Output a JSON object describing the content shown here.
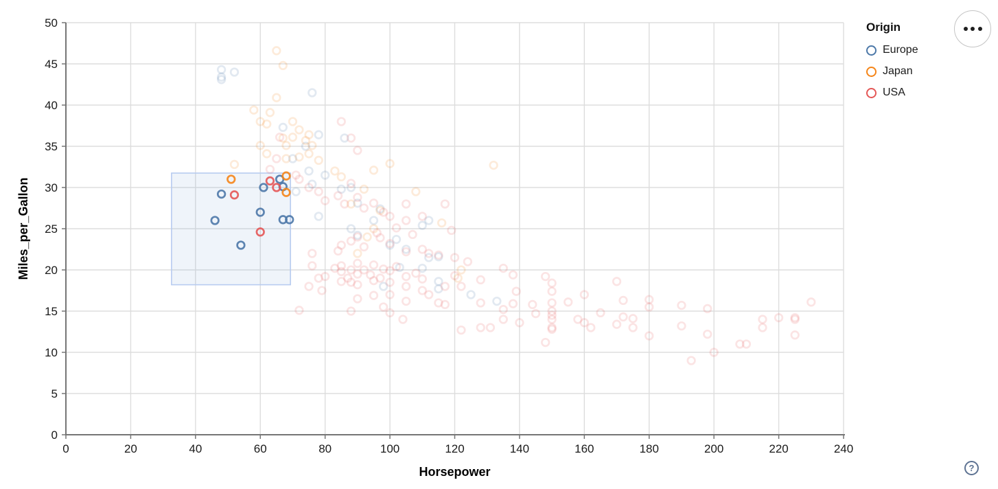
{
  "chart_data": {
    "type": "scatter",
    "title": "",
    "xlabel": "Horsepower",
    "ylabel": "Miles_per_Gallon",
    "xlim": [
      0,
      240
    ],
    "ylim": [
      0,
      50
    ],
    "xticks": [
      0,
      20,
      40,
      60,
      80,
      100,
      120,
      140,
      160,
      180,
      200,
      220,
      240
    ],
    "yticks": [
      0,
      5,
      10,
      15,
      20,
      25,
      30,
      35,
      40,
      45,
      50
    ],
    "grid": true,
    "legend_title": "Origin",
    "legend_position": "top-right",
    "brush": {
      "x": [
        32.6,
        69.3
      ],
      "y": [
        18.2,
        31.75
      ]
    },
    "opacity": {
      "selected": 0.9,
      "unselected": 0.16
    },
    "colors": {
      "axis": "#757575",
      "grid": "#dddddd",
      "tick_label": "#1a1a1a",
      "brush_fill": "#7ea4d8",
      "brush_stroke": "#b7cbf0"
    },
    "series": [
      {
        "name": "Europe",
        "color": "#4c78a8",
        "points": [
          [
            48,
            43.4
          ],
          [
            48,
            44.3
          ],
          [
            48,
            43.1
          ],
          [
            52,
            44
          ],
          [
            76,
            41.5
          ],
          [
            67,
            37.3
          ],
          [
            78,
            36.4
          ],
          [
            74,
            35
          ],
          [
            70,
            33.5
          ],
          [
            75,
            32
          ],
          [
            80,
            31.5
          ],
          [
            76,
            30.4
          ],
          [
            88,
            30
          ],
          [
            85,
            29.8
          ],
          [
            71,
            29.5
          ],
          [
            90,
            28.1
          ],
          [
            97,
            27.4
          ],
          [
            78,
            26.5
          ],
          [
            95,
            26
          ],
          [
            110,
            25.4
          ],
          [
            88,
            25
          ],
          [
            90,
            24.2
          ],
          [
            102,
            23.7
          ],
          [
            100,
            23
          ],
          [
            105,
            22.5
          ],
          [
            115,
            21.6
          ],
          [
            112,
            21.5
          ],
          [
            103,
            20.3
          ],
          [
            110,
            20.2
          ],
          [
            98,
            18
          ],
          [
            125,
            17
          ],
          [
            133,
            16.2
          ],
          [
            115,
            17.7
          ],
          [
            115,
            18.6
          ],
          [
            86,
            36
          ],
          [
            112,
            26
          ],
          [
            46,
            26
          ],
          [
            48,
            29.2
          ],
          [
            54,
            23
          ],
          [
            60,
            27
          ],
          [
            61,
            30
          ],
          [
            66,
            31
          ],
          [
            67,
            30.1
          ],
          [
            67,
            26.1
          ],
          [
            69,
            26.1
          ]
        ]
      },
      {
        "name": "Japan",
        "color": "#f58518",
        "points": [
          [
            65,
            46.6
          ],
          [
            67,
            44.8
          ],
          [
            65,
            40.9
          ],
          [
            63,
            39.1
          ],
          [
            58,
            39.4
          ],
          [
            60,
            38
          ],
          [
            62,
            37.7
          ],
          [
            67,
            36
          ],
          [
            68,
            35.1
          ],
          [
            60,
            35.1
          ],
          [
            68,
            33.5
          ],
          [
            52,
            32.8
          ],
          [
            62,
            34.1
          ],
          [
            70,
            38
          ],
          [
            72,
            37
          ],
          [
            75,
            36.4
          ],
          [
            70,
            36.1
          ],
          [
            74,
            35.7
          ],
          [
            76,
            35.1
          ],
          [
            75,
            34.1
          ],
          [
            72,
            33.7
          ],
          [
            78,
            33.3
          ],
          [
            83,
            32
          ],
          [
            85,
            31.3
          ],
          [
            92,
            29.8
          ],
          [
            88,
            28
          ],
          [
            97,
            27.2
          ],
          [
            100,
            32.9
          ],
          [
            132,
            32.7
          ],
          [
            108,
            29.5
          ],
          [
            95,
            32.1
          ],
          [
            116,
            25.7
          ],
          [
            95,
            25
          ],
          [
            122,
            20
          ],
          [
            93,
            24
          ],
          [
            90,
            22
          ],
          [
            121,
            19
          ],
          [
            51,
            31
          ],
          [
            68,
            31.4
          ],
          [
            68,
            29.4
          ]
        ]
      },
      {
        "name": "USA",
        "color": "#e45756",
        "points": [
          [
            66,
            36.1
          ],
          [
            65,
            33.5
          ],
          [
            63,
            32.2
          ],
          [
            85,
            38
          ],
          [
            88,
            36
          ],
          [
            90,
            34.5
          ],
          [
            71,
            31.5
          ],
          [
            72,
            31
          ],
          [
            75,
            30
          ],
          [
            78,
            29.5
          ],
          [
            80,
            28.4
          ],
          [
            84,
            29
          ],
          [
            86,
            28
          ],
          [
            88,
            30.5
          ],
          [
            90,
            28.8
          ],
          [
            92,
            27.5
          ],
          [
            95,
            28.1
          ],
          [
            98,
            27
          ],
          [
            100,
            26.5
          ],
          [
            105,
            26
          ],
          [
            110,
            26.5
          ],
          [
            117,
            28
          ],
          [
            102,
            25.1
          ],
          [
            107,
            24.3
          ],
          [
            96,
            24.5
          ],
          [
            90,
            24
          ],
          [
            88,
            23.5
          ],
          [
            85,
            23
          ],
          [
            84,
            22.3
          ],
          [
            92,
            22.8
          ],
          [
            97,
            23.9
          ],
          [
            100,
            23.2
          ],
          [
            105,
            22.2
          ],
          [
            110,
            22.5
          ],
          [
            115,
            21.8
          ],
          [
            112,
            22
          ],
          [
            119,
            24.8
          ],
          [
            124,
            21
          ],
          [
            120,
            21.5
          ],
          [
            105,
            28
          ],
          [
            76,
            22
          ],
          [
            76,
            20.5
          ],
          [
            78,
            19
          ],
          [
            75,
            18
          ],
          [
            79,
            17.5
          ],
          [
            72,
            15.1
          ],
          [
            80,
            19.2
          ],
          [
            83,
            20.2
          ],
          [
            85,
            20.5
          ],
          [
            85,
            19.8
          ],
          [
            85,
            18.6
          ],
          [
            87,
            19
          ],
          [
            88,
            20
          ],
          [
            88,
            18.5
          ],
          [
            90,
            20.8
          ],
          [
            90,
            19.5
          ],
          [
            90,
            18.2
          ],
          [
            92,
            20
          ],
          [
            94,
            19.4
          ],
          [
            95,
            20.6
          ],
          [
            95,
            18.7
          ],
          [
            97,
            19
          ],
          [
            98,
            20.1
          ],
          [
            100,
            19.9
          ],
          [
            100,
            18.5
          ],
          [
            102,
            20.4
          ],
          [
            105,
            19.2
          ],
          [
            105,
            18
          ],
          [
            108,
            19.6
          ],
          [
            110,
            18.9
          ],
          [
            110,
            17.5
          ],
          [
            100,
            17
          ],
          [
            95,
            16.9
          ],
          [
            90,
            16.5
          ],
          [
            98,
            15.5
          ],
          [
            105,
            16.2
          ],
          [
            112,
            17
          ],
          [
            115,
            16
          ],
          [
            88,
            15
          ],
          [
            100,
            14.8
          ],
          [
            104,
            14
          ],
          [
            117,
            18
          ],
          [
            120,
            19.3
          ],
          [
            122,
            18
          ],
          [
            128,
            18.8
          ],
          [
            128,
            16
          ],
          [
            117,
            15.8
          ],
          [
            128,
            13
          ],
          [
            131,
            13
          ],
          [
            135,
            20.2
          ],
          [
            138,
            19.4
          ],
          [
            139,
            17.4
          ],
          [
            138,
            15.9
          ],
          [
            135,
            15.2
          ],
          [
            135,
            14
          ],
          [
            140,
            13.6
          ],
          [
            144,
            15.8
          ],
          [
            145,
            14.7
          ],
          [
            148,
            19.2
          ],
          [
            150,
            18.4
          ],
          [
            150,
            17.4
          ],
          [
            150,
            16
          ],
          [
            150,
            15
          ],
          [
            150,
            14.5
          ],
          [
            150,
            14
          ],
          [
            150,
            13
          ],
          [
            150,
            12.8
          ],
          [
            155,
            16.1
          ],
          [
            158,
            14
          ],
          [
            160,
            17
          ],
          [
            160,
            13.6
          ],
          [
            165,
            14.8
          ],
          [
            170,
            13.4
          ],
          [
            172,
            16.3
          ],
          [
            172,
            14.3
          ],
          [
            175,
            14.1
          ],
          [
            175,
            13
          ],
          [
            170,
            18.6
          ],
          [
            180,
            16.4
          ],
          [
            180,
            15.5
          ],
          [
            180,
            12
          ],
          [
            190,
            15.7
          ],
          [
            190,
            13.2
          ],
          [
            198,
            15.3
          ],
          [
            198,
            12.2
          ],
          [
            122,
            12.7
          ],
          [
            148,
            11.2
          ],
          [
            162,
            13
          ],
          [
            208,
            11
          ],
          [
            210,
            11
          ],
          [
            200,
            10
          ],
          [
            193,
            9
          ],
          [
            215,
            14
          ],
          [
            215,
            13
          ],
          [
            220,
            14.2
          ],
          [
            225,
            14.2
          ],
          [
            225,
            14
          ],
          [
            225,
            12.1
          ],
          [
            230,
            16.1
          ],
          [
            52,
            29.1
          ],
          [
            60,
            24.6
          ],
          [
            63,
            30.8
          ],
          [
            65,
            30
          ]
        ]
      }
    ]
  },
  "controls": {
    "help_label": "?",
    "menu_icon": "ellipsis"
  }
}
